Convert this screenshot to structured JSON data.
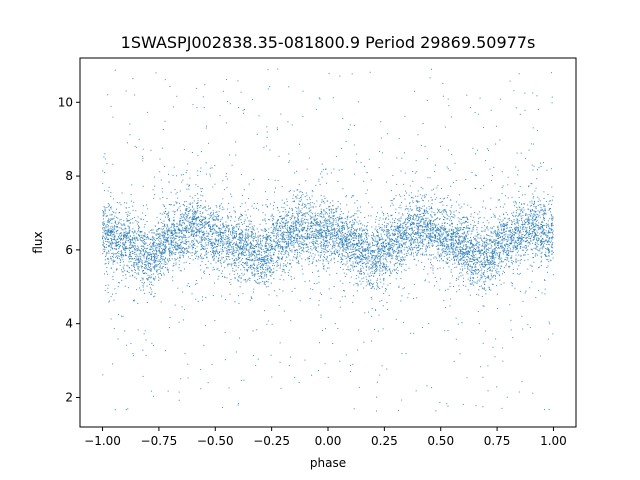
{
  "chart_data": {
    "type": "scatter",
    "title": "1SWASPJ002838.35-081800.9 Period 29869.50977s",
    "xlabel": "phase",
    "ylabel": "flux",
    "xlim": [
      -1.1,
      1.1
    ],
    "ylim": [
      1.2,
      11.2
    ],
    "xticks": [
      -1.0,
      -0.75,
      -0.5,
      -0.25,
      0.0,
      0.25,
      0.5,
      0.75,
      1.0
    ],
    "xtick_labels": [
      "−1.00",
      "−0.75",
      "−0.50",
      "−0.25",
      "0.00",
      "0.25",
      "0.50",
      "0.75",
      "1.00"
    ],
    "yticks": [
      2,
      4,
      6,
      8,
      10
    ],
    "ytick_labels": [
      "2",
      "4",
      "6",
      "8",
      "10"
    ],
    "grid": false,
    "legend": "none",
    "color": "#1f77b4",
    "series": [
      {
        "x_range": [
          -1.0,
          1.0
        ],
        "trend": {
          "phase": [
            -1.0,
            -0.9,
            -0.8,
            -0.7,
            -0.6,
            -0.5,
            -0.4,
            -0.3,
            -0.2,
            -0.1,
            0.0,
            0.1,
            0.2,
            0.3,
            0.4,
            0.5,
            0.6,
            0.7,
            0.8,
            0.9,
            1.0
          ],
          "flux": [
            6.5,
            6.2,
            5.8,
            6.3,
            6.6,
            6.4,
            6.1,
            5.8,
            6.3,
            6.6,
            6.5,
            6.2,
            5.8,
            6.3,
            6.6,
            6.4,
            6.1,
            5.8,
            6.3,
            6.6,
            6.5
          ]
        }
      }
    ]
  }
}
